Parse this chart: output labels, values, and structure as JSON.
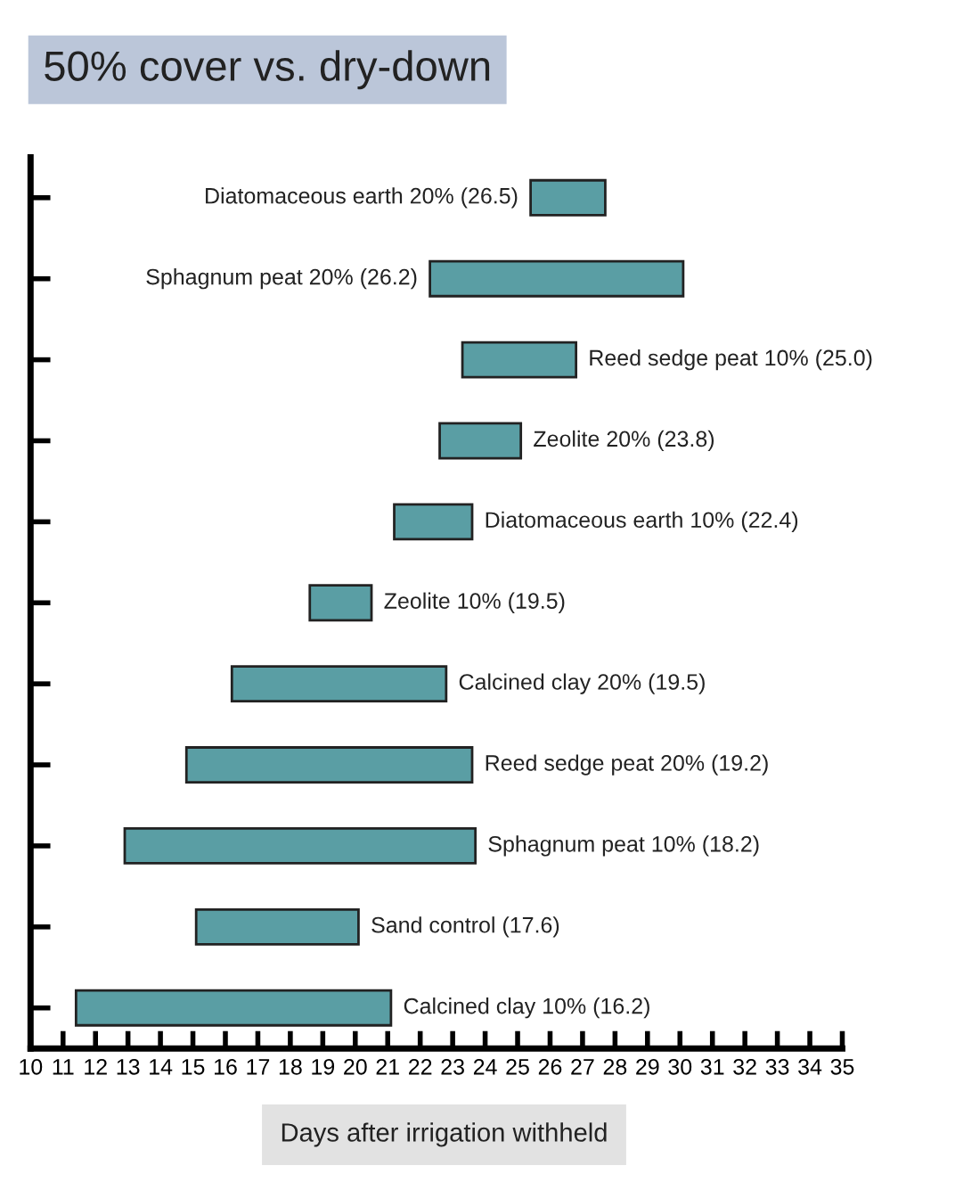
{
  "chart_data": {
    "type": "bar",
    "orientation": "horizontal",
    "title": "50% cover vs. dry-down",
    "xlabel": "Days after irrigation withheld",
    "categories": [
      "Diatomaceous earth 20% (26.5)",
      "Sphagnum peat 20% (26.2)",
      "Reed sedge peat 10% (25.0)",
      "Zeolite 20% (23.8)",
      "Diatomaceous earth 10% (22.4)",
      "Zeolite 10% (19.5)",
      "Calcined clay 20% (19.5)",
      "Reed sedge peat 20% (19.2)",
      "Sphagnum peat 10% (18.2)",
      "Sand control (17.6)",
      "Calcined clay 10% (16.2)"
    ],
    "base": [
      25.4,
      22.3,
      23.3,
      22.6,
      21.2,
      18.6,
      16.2,
      14.8,
      12.9,
      15.1,
      11.4
    ],
    "values": [
      2.3,
      7.8,
      3.5,
      2.5,
      2.4,
      1.9,
      6.6,
      8.8,
      10.8,
      5.0,
      9.7
    ],
    "color": "#5a9ea4",
    "xlim": [
      10,
      35
    ],
    "xticks": [
      10,
      11,
      12,
      13,
      14,
      15,
      16,
      17,
      18,
      19,
      20,
      21,
      22,
      23,
      24,
      25,
      26,
      27,
      28,
      29,
      30,
      31,
      32,
      33,
      34,
      35
    ],
    "tick_labels": "x",
    "grid": false
  }
}
